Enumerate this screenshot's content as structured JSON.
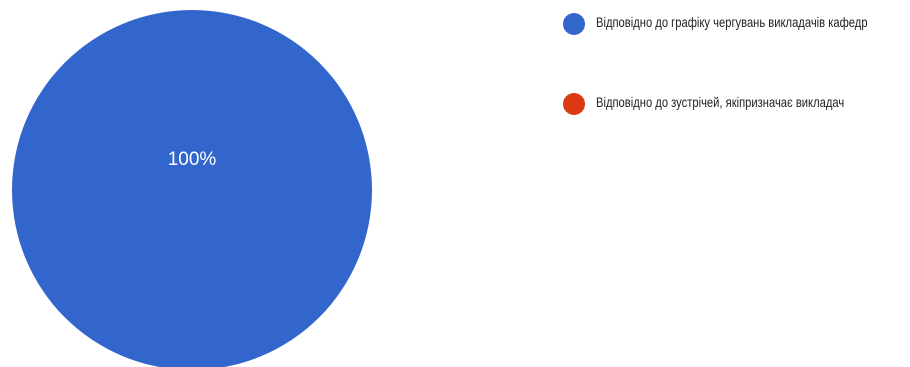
{
  "chart_data": {
    "type": "pie",
    "categories": [
      "Відповідно до графіку чергувань викладачів кафедр",
      "Відповідно до зустрічей, якіпризначає викладач"
    ],
    "values": [
      100,
      0
    ],
    "labels": [
      "100%",
      ""
    ],
    "colors": [
      "#3366cc",
      "#dc3912"
    ],
    "legend_position": "right"
  }
}
